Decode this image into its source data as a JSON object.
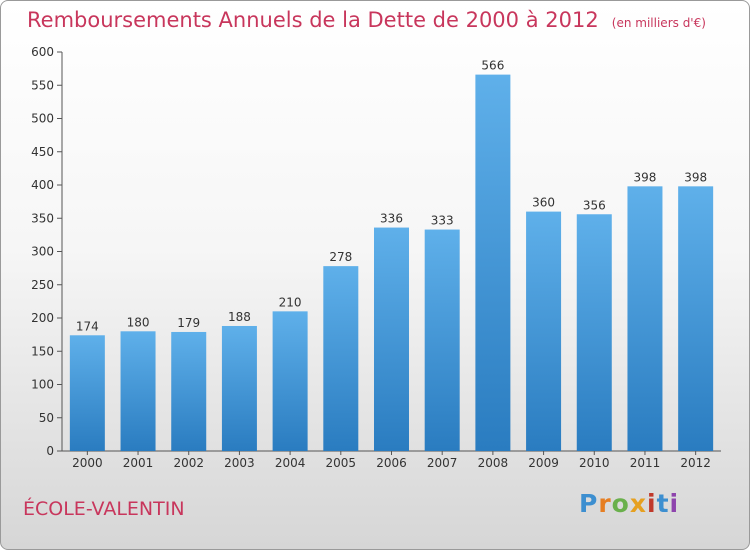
{
  "header": {
    "title": "Remboursements Annuels de la Dette de 2000 à 2012",
    "unit": "(en milliers d'€)"
  },
  "place": "ÉCOLE-VALENTIN",
  "logo": "Proxiti",
  "colors": {
    "title": "#c8365c",
    "bar_top": "#5fb0ea",
    "bar_bottom": "#2a7cc0"
  },
  "chart_data": {
    "type": "bar",
    "title": "Remboursements Annuels de la Dette de 2000 à 2012",
    "xlabel": "",
    "ylabel": "",
    "categories": [
      "2000",
      "2001",
      "2002",
      "2003",
      "2004",
      "2005",
      "2006",
      "2007",
      "2008",
      "2009",
      "2010",
      "2011",
      "2012"
    ],
    "values": [
      174,
      180,
      179,
      188,
      210,
      278,
      336,
      333,
      566,
      360,
      356,
      398,
      398
    ],
    "ylim": [
      0,
      600
    ],
    "yticks": [
      0,
      50,
      100,
      150,
      200,
      250,
      300,
      350,
      400,
      450,
      500,
      550,
      600
    ],
    "grid": false,
    "data_labels": true
  }
}
